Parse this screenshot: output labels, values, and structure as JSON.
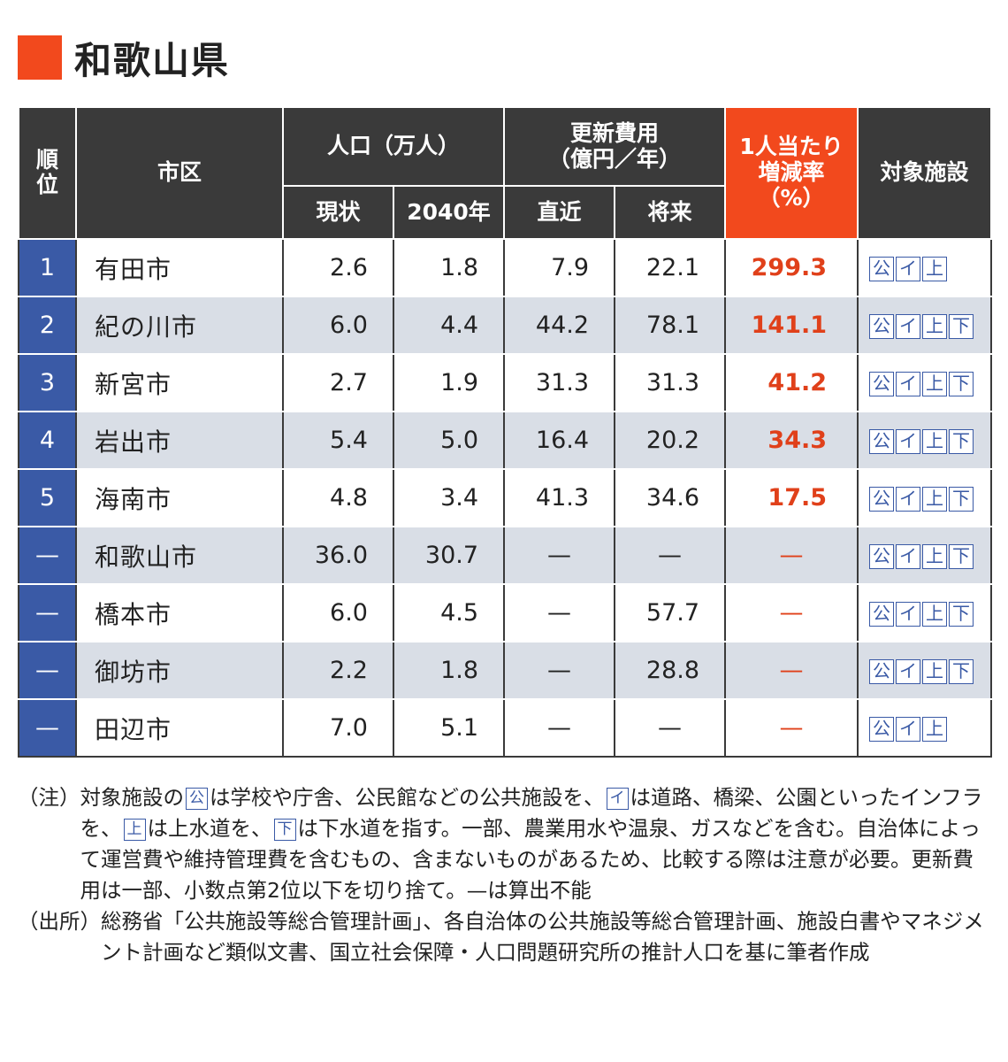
{
  "title": "和歌山県",
  "colors": {
    "accent": "#f2491d",
    "header_bg": "#3a3a3a",
    "rank_bg": "#3a5aa6",
    "stripe": "#d9dee6",
    "rate_text": "#e0401a"
  },
  "table": {
    "headers": {
      "rank": "順位",
      "city": "市区",
      "population": "人口（万人）",
      "pop_current": "現状",
      "pop_2040": "2040年",
      "cost_line1": "更新費用",
      "cost_line2": "（億円／年）",
      "cost_recent": "直近",
      "cost_future": "将来",
      "rate_line1": "1人当たり",
      "rate_line2": "増減率",
      "rate_line3": "（%）",
      "facilities": "対象施設"
    },
    "rows": [
      {
        "rank": "1",
        "city": "有田市",
        "pop_current": "2.6",
        "pop_2040": "1.8",
        "cost_recent": "7.9",
        "cost_future": "22.1",
        "rate": "299.3",
        "fac": [
          "公",
          "イ",
          "上"
        ]
      },
      {
        "rank": "2",
        "city": "紀の川市",
        "pop_current": "6.0",
        "pop_2040": "4.4",
        "cost_recent": "44.2",
        "cost_future": "78.1",
        "rate": "141.1",
        "fac": [
          "公",
          "イ",
          "上",
          "下"
        ]
      },
      {
        "rank": "3",
        "city": "新宮市",
        "pop_current": "2.7",
        "pop_2040": "1.9",
        "cost_recent": "31.3",
        "cost_future": "31.3",
        "rate": "41.2",
        "fac": [
          "公",
          "イ",
          "上",
          "下"
        ]
      },
      {
        "rank": "4",
        "city": "岩出市",
        "pop_current": "5.4",
        "pop_2040": "5.0",
        "cost_recent": "16.4",
        "cost_future": "20.2",
        "rate": "34.3",
        "fac": [
          "公",
          "イ",
          "上",
          "下"
        ]
      },
      {
        "rank": "5",
        "city": "海南市",
        "pop_current": "4.8",
        "pop_2040": "3.4",
        "cost_recent": "41.3",
        "cost_future": "34.6",
        "rate": "17.5",
        "fac": [
          "公",
          "イ",
          "上",
          "下"
        ]
      },
      {
        "rank": "—",
        "city": "和歌山市",
        "pop_current": "36.0",
        "pop_2040": "30.7",
        "cost_recent": "—",
        "cost_future": "—",
        "rate": "—",
        "fac": [
          "公",
          "イ",
          "上",
          "下"
        ]
      },
      {
        "rank": "—",
        "city": "橋本市",
        "pop_current": "6.0",
        "pop_2040": "4.5",
        "cost_recent": "—",
        "cost_future": "57.7",
        "rate": "—",
        "fac": [
          "公",
          "イ",
          "上",
          "下"
        ]
      },
      {
        "rank": "—",
        "city": "御坊市",
        "pop_current": "2.2",
        "pop_2040": "1.8",
        "cost_recent": "—",
        "cost_future": "28.8",
        "rate": "—",
        "fac": [
          "公",
          "イ",
          "上",
          "下"
        ]
      },
      {
        "rank": "—",
        "city": "田辺市",
        "pop_current": "7.0",
        "pop_2040": "5.1",
        "cost_recent": "—",
        "cost_future": "—",
        "rate": "—",
        "fac": [
          "公",
          "イ",
          "上"
        ]
      }
    ]
  },
  "notes": {
    "note_label": "（注）",
    "note_parts": [
      "対象施設の",
      "公",
      "は学校や庁舎、公民館などの公共施設を、",
      "イ",
      "は道路、橋梁、公園といったインフラを、",
      "上",
      "は上水道を、",
      "下",
      "は下水道を指す。一部、農業用水や温泉、ガスなどを含む。自治体によって運営費や維持管理費を含むもの、含まないものがあるため、比較する際は注意が必要。更新費用は一部、小数点第2位以下を切り捨て。—は算出不能"
    ],
    "source_label": "（出所）",
    "source_text": "総務省「公共施設等総合管理計画」、各自治体の公共施設等総合管理計画、施設白書やマネジメント計画など類似文書、国立社会保障・人口問題研究所の推計人口を基に筆者作成"
  }
}
